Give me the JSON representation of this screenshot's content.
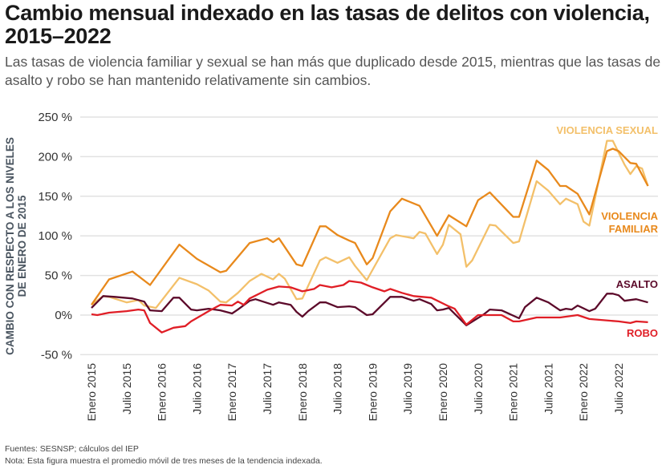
{
  "title": "Cambio mensual indexado en las tasas de delitos con violencia, 2015–2022",
  "subtitle": "Las tasas de violencia familiar y sexual se han más que duplicado desde 2015, mientras que las tasas de asalto y robo se han mantenido relativamente sin cambios.",
  "footer": {
    "sources": "Fuentes: SESNSP; cálculos del IEP",
    "note": "Nota: Esta figura muestra el promedio móvil de tres meses de la tendencia indexada."
  },
  "chart_data": {
    "type": "line",
    "ylabel": "CAMBIO CON RESPECTO A LOS NIVELES DE ENERO DE 2015",
    "ylim": [
      -50,
      250
    ],
    "yticks": [
      -50,
      0,
      50,
      100,
      150,
      200,
      250
    ],
    "ytick_labels": [
      "-50 %",
      "0%",
      "50 %",
      "100 %",
      "150 %",
      "200 %",
      "250 %"
    ],
    "xlim": [
      "2015-01",
      "2022-12"
    ],
    "xticks": [
      "2015-01",
      "2015-07",
      "2016-01",
      "2016-07",
      "2017-01",
      "2017-07",
      "2018-01",
      "2018-07",
      "2019-01",
      "2019-07",
      "2020-01",
      "2020-07",
      "2021-01",
      "2021-07",
      "2022-01",
      "2022-07"
    ],
    "xtick_labels": [
      "Enero 2015",
      "Julio 2015",
      "Enero 2016",
      "Julio 2016",
      "Enero 2017",
      "Julio 2017",
      "Enero 2018",
      "Julio 2018",
      "Enero 2019",
      "Julio 2019",
      "Enero 2020",
      "Julio 2020",
      "Enero 2021",
      "Julio 2021",
      "Enero 2022",
      "Julio 2022"
    ],
    "grid": true,
    "legend": "direct labels at right end",
    "series": [
      {
        "name": "VIOLENCIA SEXUAL",
        "color": "#f3c06a",
        "points": [
          [
            "2015-01",
            13
          ],
          [
            "2015-03",
            24
          ],
          [
            "2015-04",
            23
          ],
          [
            "2015-07",
            16
          ],
          [
            "2015-09",
            19
          ],
          [
            "2015-10",
            12
          ],
          [
            "2015-12",
            9
          ],
          [
            "2016-04",
            47
          ],
          [
            "2016-07",
            39
          ],
          [
            "2016-09",
            31
          ],
          [
            "2016-11",
            17
          ],
          [
            "2016-12",
            16
          ],
          [
            "2017-02",
            28
          ],
          [
            "2017-04",
            43
          ],
          [
            "2017-06",
            52
          ],
          [
            "2017-08",
            45
          ],
          [
            "2017-09",
            52
          ],
          [
            "2017-10",
            46
          ],
          [
            "2017-12",
            20
          ],
          [
            "2018-01",
            21
          ],
          [
            "2018-04",
            69
          ],
          [
            "2018-05",
            73
          ],
          [
            "2018-07",
            66
          ],
          [
            "2018-09",
            73
          ],
          [
            "2018-10",
            62
          ],
          [
            "2018-12",
            44
          ],
          [
            "2019-04",
            97
          ],
          [
            "2019-05",
            101
          ],
          [
            "2019-08",
            97
          ],
          [
            "2019-09",
            105
          ],
          [
            "2019-10",
            103
          ],
          [
            "2019-12",
            77
          ],
          [
            "2020-01",
            89
          ],
          [
            "2020-02",
            114
          ],
          [
            "2020-04",
            102
          ],
          [
            "2020-05",
            61
          ],
          [
            "2020-06",
            69
          ],
          [
            "2020-09",
            114
          ],
          [
            "2020-10",
            113
          ],
          [
            "2021-01",
            91
          ],
          [
            "2021-02",
            93
          ],
          [
            "2021-05",
            169
          ],
          [
            "2021-07",
            157
          ],
          [
            "2021-09",
            140
          ],
          [
            "2021-10",
            147
          ],
          [
            "2021-12",
            140
          ],
          [
            "2022-01",
            118
          ],
          [
            "2022-02",
            113
          ],
          [
            "2022-05",
            220
          ],
          [
            "2022-06",
            220
          ],
          [
            "2022-08",
            190
          ],
          [
            "2022-09",
            178
          ],
          [
            "2022-10",
            188
          ],
          [
            "2022-11",
            185
          ],
          [
            "2022-12",
            163
          ]
        ]
      },
      {
        "name": "VIOLENCIA FAMILIAR",
        "color": "#e8891c",
        "points": [
          [
            "2015-01",
            13
          ],
          [
            "2015-04",
            45
          ],
          [
            "2015-08",
            55
          ],
          [
            "2015-11",
            38
          ],
          [
            "2016-04",
            89
          ],
          [
            "2016-07",
            71
          ],
          [
            "2016-11",
            54
          ],
          [
            "2016-12",
            56
          ],
          [
            "2017-04",
            91
          ],
          [
            "2017-07",
            97
          ],
          [
            "2017-08",
            92
          ],
          [
            "2017-09",
            97
          ],
          [
            "2017-12",
            64
          ],
          [
            "2018-01",
            62
          ],
          [
            "2018-04",
            112
          ],
          [
            "2018-05",
            112
          ],
          [
            "2018-07",
            101
          ],
          [
            "2018-09",
            94
          ],
          [
            "2018-10",
            91
          ],
          [
            "2018-12",
            64
          ],
          [
            "2019-01",
            72
          ],
          [
            "2019-04",
            131
          ],
          [
            "2019-06",
            147
          ],
          [
            "2019-09",
            138
          ],
          [
            "2019-12",
            100
          ],
          [
            "2020-02",
            126
          ],
          [
            "2020-05",
            112
          ],
          [
            "2020-07",
            145
          ],
          [
            "2020-09",
            155
          ],
          [
            "2021-01",
            124
          ],
          [
            "2021-02",
            124
          ],
          [
            "2021-05",
            195
          ],
          [
            "2021-07",
            183
          ],
          [
            "2021-09",
            163
          ],
          [
            "2021-10",
            163
          ],
          [
            "2021-12",
            153
          ],
          [
            "2022-02",
            127
          ],
          [
            "2022-05",
            207
          ],
          [
            "2022-06",
            210
          ],
          [
            "2022-07",
            207
          ],
          [
            "2022-09",
            192
          ],
          [
            "2022-10",
            191
          ],
          [
            "2022-12",
            163
          ]
        ]
      },
      {
        "name": "ASALTO",
        "color": "#5c0a2a",
        "points": [
          [
            "2015-01",
            9
          ],
          [
            "2015-03",
            24
          ],
          [
            "2015-05",
            23
          ],
          [
            "2015-08",
            21
          ],
          [
            "2015-10",
            17
          ],
          [
            "2015-11",
            6
          ],
          [
            "2016-01",
            5
          ],
          [
            "2016-03",
            22
          ],
          [
            "2016-04",
            22
          ],
          [
            "2016-06",
            7
          ],
          [
            "2016-07",
            6
          ],
          [
            "2016-09",
            8
          ],
          [
            "2016-11",
            6
          ],
          [
            "2017-01",
            2
          ],
          [
            "2017-02",
            7
          ],
          [
            "2017-04",
            18
          ],
          [
            "2017-05",
            20
          ],
          [
            "2017-08",
            13
          ],
          [
            "2017-09",
            16
          ],
          [
            "2017-11",
            13
          ],
          [
            "2017-12",
            4
          ],
          [
            "2018-01",
            -2
          ],
          [
            "2018-02",
            5
          ],
          [
            "2018-04",
            16
          ],
          [
            "2018-05",
            16
          ],
          [
            "2018-07",
            10
          ],
          [
            "2018-09",
            11
          ],
          [
            "2018-10",
            10
          ],
          [
            "2018-12",
            0
          ],
          [
            "2019-01",
            1
          ],
          [
            "2019-04",
            23
          ],
          [
            "2019-06",
            23
          ],
          [
            "2019-08",
            18
          ],
          [
            "2019-09",
            20
          ],
          [
            "2019-11",
            14
          ],
          [
            "2019-12",
            6
          ],
          [
            "2020-01",
            7
          ],
          [
            "2020-02",
            9
          ],
          [
            "2020-05",
            -13
          ],
          [
            "2020-08",
            1
          ],
          [
            "2020-09",
            7
          ],
          [
            "2020-11",
            6
          ],
          [
            "2021-02",
            -4
          ],
          [
            "2021-03",
            10
          ],
          [
            "2021-05",
            22
          ],
          [
            "2021-07",
            16
          ],
          [
            "2021-09",
            6
          ],
          [
            "2021-10",
            8
          ],
          [
            "2021-11",
            7
          ],
          [
            "2021-12",
            12
          ],
          [
            "2022-02",
            5
          ],
          [
            "2022-03",
            8
          ],
          [
            "2022-05",
            27
          ],
          [
            "2022-06",
            27
          ],
          [
            "2022-07",
            25
          ],
          [
            "2022-08",
            18
          ],
          [
            "2022-10",
            20
          ],
          [
            "2022-12",
            16
          ]
        ]
      },
      {
        "name": "ROBO",
        "color": "#e01e26",
        "points": [
          [
            "2015-01",
            1
          ],
          [
            "2015-02",
            0
          ],
          [
            "2015-04",
            3
          ],
          [
            "2015-07",
            5
          ],
          [
            "2015-09",
            7
          ],
          [
            "2015-10",
            6
          ],
          [
            "2015-11",
            -10
          ],
          [
            "2016-01",
            -22
          ],
          [
            "2016-03",
            -16
          ],
          [
            "2016-05",
            -14
          ],
          [
            "2016-06",
            -8
          ],
          [
            "2016-09",
            5
          ],
          [
            "2016-11",
            13
          ],
          [
            "2017-01",
            12
          ],
          [
            "2017-02",
            17
          ],
          [
            "2017-03",
            13
          ],
          [
            "2017-04",
            21
          ],
          [
            "2017-07",
            32
          ],
          [
            "2017-09",
            36
          ],
          [
            "2017-11",
            35
          ],
          [
            "2018-01",
            30
          ],
          [
            "2018-03",
            33
          ],
          [
            "2018-04",
            38
          ],
          [
            "2018-06",
            35
          ],
          [
            "2018-08",
            38
          ],
          [
            "2018-09",
            43
          ],
          [
            "2018-11",
            41
          ],
          [
            "2019-01",
            35
          ],
          [
            "2019-03",
            30
          ],
          [
            "2019-04",
            33
          ],
          [
            "2019-06",
            28
          ],
          [
            "2019-08",
            24
          ],
          [
            "2019-11",
            22
          ],
          [
            "2020-02",
            11
          ],
          [
            "2020-03",
            8
          ],
          [
            "2020-05",
            -12
          ],
          [
            "2020-07",
            0
          ],
          [
            "2020-11",
            0
          ],
          [
            "2021-01",
            -8
          ],
          [
            "2021-02",
            -8
          ],
          [
            "2021-05",
            -3
          ],
          [
            "2021-09",
            -3
          ],
          [
            "2021-12",
            0
          ],
          [
            "2022-02",
            -5
          ],
          [
            "2022-07",
            -8
          ],
          [
            "2022-09",
            -10
          ],
          [
            "2022-10",
            -8
          ],
          [
            "2022-12",
            -9
          ]
        ]
      }
    ]
  }
}
